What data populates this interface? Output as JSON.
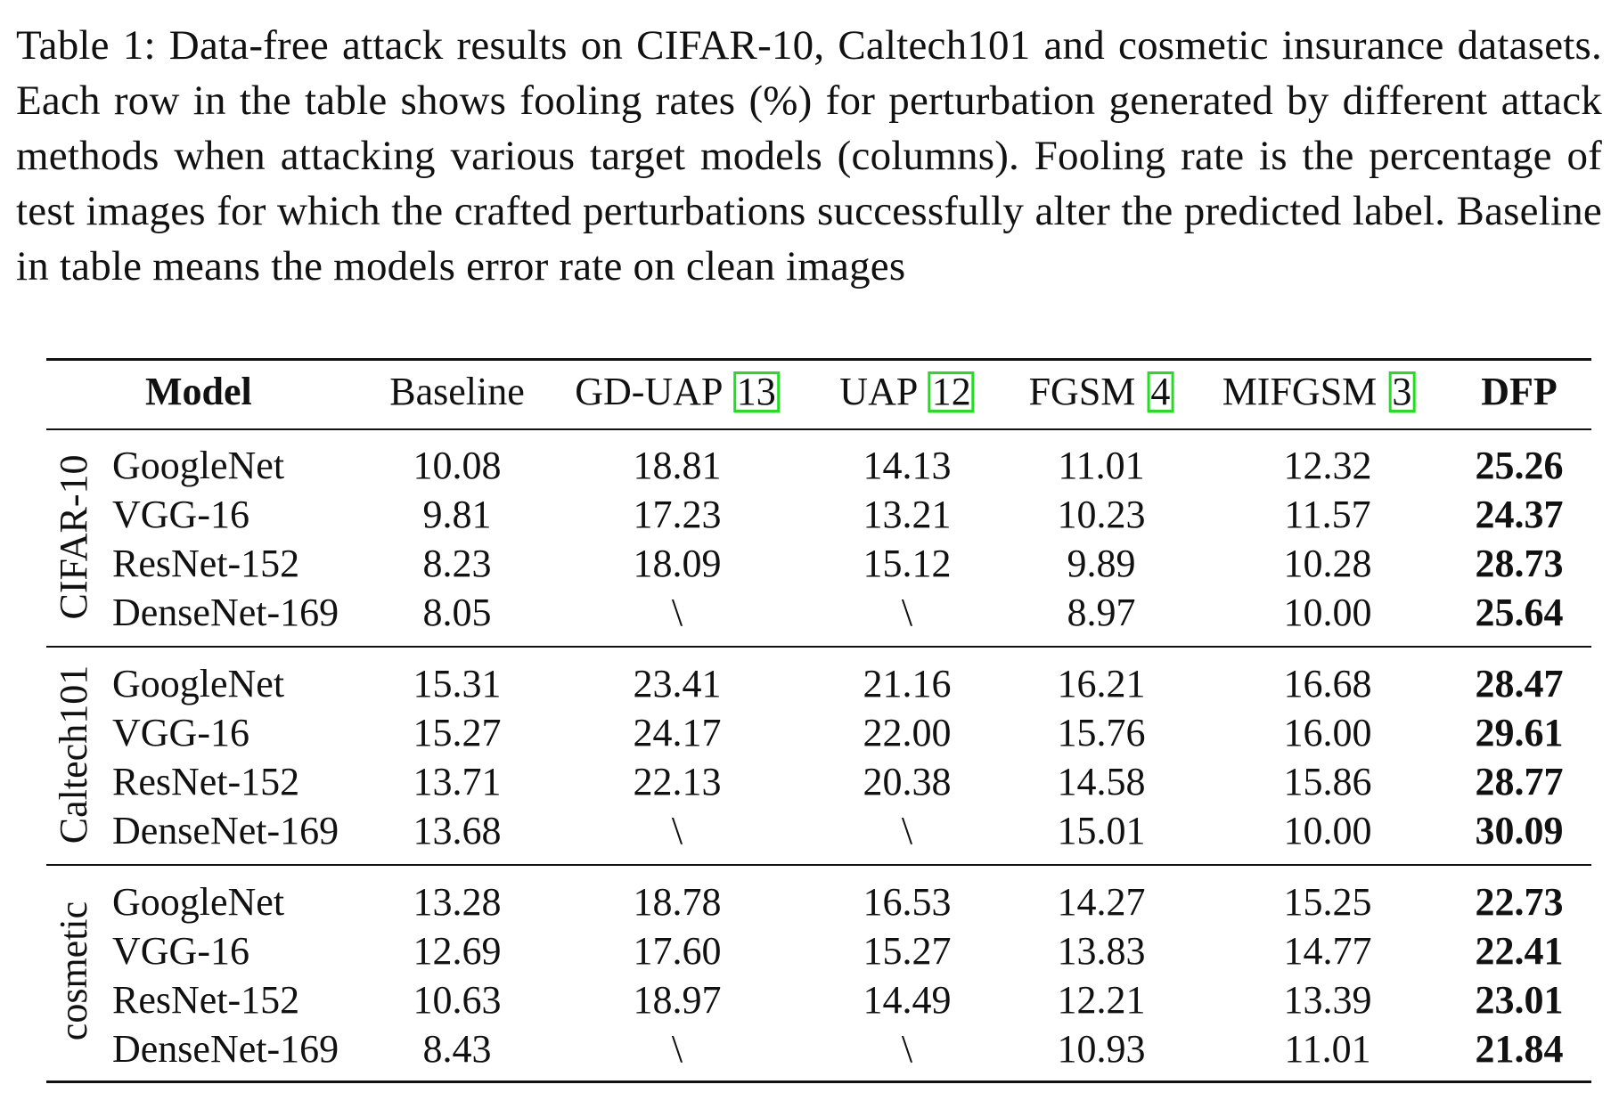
{
  "caption": "Table 1: Data-free attack results on CIFAR-10, Caltech101 and cosmetic insurance datasets. Each row in the table shows fooling rates (%) for perturbation generated by different attack methods when attacking various target models (columns). Fooling rate is the percentage of test images for which the crafted perturbations successfully alter the predicted label. Baseline in table means the models error rate on clean images",
  "table": {
    "header": {
      "model": "Model",
      "baseline": "Baseline",
      "gduap": "GD-UAP",
      "gduap_ref": "13",
      "uap": "UAP",
      "uap_ref": "12",
      "fgsm": "FGSM",
      "fgsm_ref": "4",
      "mifgsm": "MIFGSM",
      "mifgsm_ref": "3",
      "dfp": "DFP"
    },
    "groups": [
      {
        "dataset": "CIFAR-10",
        "rows": [
          {
            "model": "GoogleNet",
            "baseline": "10.08",
            "gduap": "18.81",
            "uap": "14.13",
            "fgsm": "11.01",
            "mifgsm": "12.32",
            "dfp": "25.26"
          },
          {
            "model": "VGG-16",
            "baseline": "9.81",
            "gduap": "17.23",
            "uap": "13.21",
            "fgsm": "10.23",
            "mifgsm": "11.57",
            "dfp": "24.37"
          },
          {
            "model": "ResNet-152",
            "baseline": "8.23",
            "gduap": "18.09",
            "uap": "15.12",
            "fgsm": "9.89",
            "mifgsm": "10.28",
            "dfp": "28.73"
          },
          {
            "model": "DenseNet-169",
            "baseline": "8.05",
            "gduap": "\\",
            "uap": "\\",
            "fgsm": "8.97",
            "mifgsm": "10.00",
            "dfp": "25.64"
          }
        ]
      },
      {
        "dataset": "Caltech101",
        "rows": [
          {
            "model": "GoogleNet",
            "baseline": "15.31",
            "gduap": "23.41",
            "uap": "21.16",
            "fgsm": "16.21",
            "mifgsm": "16.68",
            "dfp": "28.47"
          },
          {
            "model": "VGG-16",
            "baseline": "15.27",
            "gduap": "24.17",
            "uap": "22.00",
            "fgsm": "15.76",
            "mifgsm": "16.00",
            "dfp": "29.61"
          },
          {
            "model": "ResNet-152",
            "baseline": "13.71",
            "gduap": "22.13",
            "uap": "20.38",
            "fgsm": "14.58",
            "mifgsm": "15.86",
            "dfp": "28.77"
          },
          {
            "model": "DenseNet-169",
            "baseline": "13.68",
            "gduap": "\\",
            "uap": "\\",
            "fgsm": "15.01",
            "mifgsm": "10.00",
            "dfp": "30.09"
          }
        ]
      },
      {
        "dataset": "cosmetic",
        "rows": [
          {
            "model": "GoogleNet",
            "baseline": "13.28",
            "gduap": "18.78",
            "uap": "16.53",
            "fgsm": "14.27",
            "mifgsm": "15.25",
            "dfp": "22.73"
          },
          {
            "model": "VGG-16",
            "baseline": "12.69",
            "gduap": "17.60",
            "uap": "15.27",
            "fgsm": "13.83",
            "mifgsm": "14.77",
            "dfp": "22.41"
          },
          {
            "model": "ResNet-152",
            "baseline": "10.63",
            "gduap": "18.97",
            "uap": "14.49",
            "fgsm": "12.21",
            "mifgsm": "13.39",
            "dfp": "23.01"
          },
          {
            "model": "DenseNet-169",
            "baseline": "8.43",
            "gduap": "\\",
            "uap": "\\",
            "fgsm": "10.93",
            "mifgsm": "11.01",
            "dfp": "21.84"
          }
        ]
      }
    ]
  }
}
